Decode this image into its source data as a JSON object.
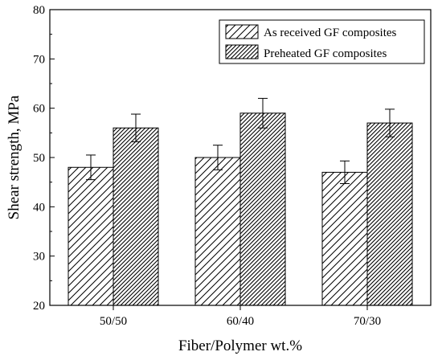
{
  "chart_data": {
    "type": "bar",
    "title": "",
    "xlabel": "Fiber/Polymer wt.%",
    "ylabel": "Shear strength, MPa",
    "categories": [
      "50/50",
      "60/40",
      "70/30"
    ],
    "ylim": [
      20,
      80
    ],
    "yticks": [
      "20",
      "30",
      "40",
      "50",
      "60",
      "70",
      "80"
    ],
    "grid": false,
    "legend_position": "top-right",
    "series": [
      {
        "name": "As received GF composites",
        "values": [
          48,
          50,
          47
        ],
        "errors": [
          2.5,
          2.5,
          2.3
        ],
        "hatch": "sparse-diagonal"
      },
      {
        "name": "Preheated GF composites",
        "values": [
          56,
          59,
          57
        ],
        "errors": [
          2.8,
          3.0,
          2.8
        ],
        "hatch": "dense-diagonal"
      }
    ]
  }
}
